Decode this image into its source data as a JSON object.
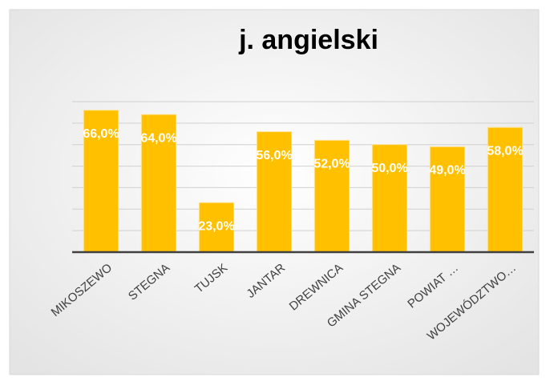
{
  "chart_data": {
    "type": "bar",
    "title": "j. angielski",
    "categories": [
      "MIKOSZEWO",
      "STEGNA",
      "TUJSK",
      "JANTAR",
      "DREWNICA",
      "GMINA STEGNA",
      "POWIAT …",
      "WOJEWÓDZTWO…"
    ],
    "values": [
      66,
      64,
      23,
      56,
      52,
      50,
      49,
      58
    ],
    "value_labels": [
      "66,0%",
      "64,0%",
      "23,0%",
      "56,0%",
      "52,0%",
      "50,0%",
      "49,0%",
      "58,0%"
    ],
    "color": "#ffc000",
    "ylim": [
      0,
      70
    ],
    "yticks": [
      0,
      10,
      20,
      30,
      40,
      50,
      60,
      70
    ],
    "grid": true
  }
}
